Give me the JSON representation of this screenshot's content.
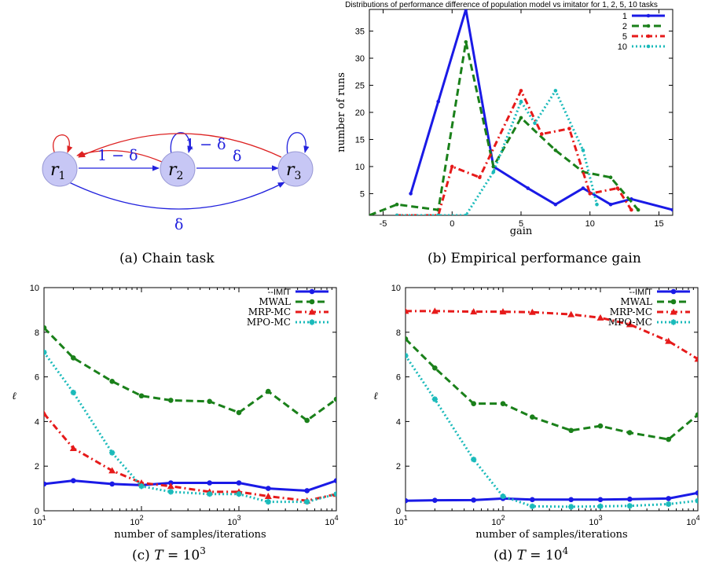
{
  "diagram": {
    "nodes": [
      {
        "id": "r1",
        "label": "r",
        "sub": "1"
      },
      {
        "id": "r2",
        "label": "r",
        "sub": "2"
      },
      {
        "id": "r3",
        "label": "r",
        "sub": "3"
      }
    ],
    "edge_labels": {
      "r2_r1": "1 − δ",
      "r3_r2": "1 − δ",
      "r2_r3": "δ",
      "r1_r3": "δ"
    },
    "colors": {
      "node_fill": "#c7c7f5",
      "node_stroke": "#9a9ad6",
      "red_edge": "#dd2222",
      "blue_edge": "#2222dd"
    }
  },
  "captions": {
    "a": "(a)  Chain task",
    "b": "(b)  Empirical performance gain",
    "c_prefix": "(c)  ",
    "c_var": "T",
    "c_eq": " = 10",
    "c_exp": "3",
    "d_prefix": "(d)  ",
    "d_var": "T",
    "d_eq": " = 10",
    "d_exp": "4"
  },
  "chart_data": [
    {
      "type": "line",
      "title": "Distributions of performance difference of population model vs imitator for 1, 2, 5, 10 tasks",
      "xlabel": "gain",
      "ylabel": "number of runs",
      "xlim": [
        -6,
        16
      ],
      "ylim": [
        1,
        39
      ],
      "xticks": [
        -5,
        0,
        5,
        10,
        15
      ],
      "yticks": [
        5,
        10,
        15,
        20,
        25,
        30,
        35
      ],
      "legend_position": "top-right",
      "series": [
        {
          "name": "1",
          "color": "#1a1ae6",
          "dash": "solid",
          "x": [
            -3,
            -1,
            1,
            3,
            5.5,
            7.5,
            9.5,
            11.5,
            13,
            16
          ],
          "y": [
            5,
            22,
            39,
            10,
            6,
            3,
            6,
            3,
            4,
            2
          ]
        },
        {
          "name": "2",
          "color": "#1a801a",
          "dash": "dash",
          "x": [
            -6,
            -4,
            -1,
            1,
            3,
            5,
            7.5,
            9.5,
            11.5,
            13.5
          ],
          "y": [
            1,
            3,
            2,
            33,
            10,
            19,
            13,
            9,
            8,
            2
          ]
        },
        {
          "name": "5",
          "color": "#e61a1a",
          "dash": "dashdot",
          "x": [
            -4,
            -1,
            0,
            2,
            5,
            6.5,
            8.5,
            10,
            12,
            13
          ],
          "y": [
            1,
            1,
            10,
            8,
            24,
            16,
            17,
            5,
            6,
            2
          ]
        },
        {
          "name": "10",
          "color": "#1ababa",
          "dash": "dot",
          "x": [
            -4,
            -1,
            1,
            3,
            5,
            6,
            7.5,
            9.5,
            10.5
          ],
          "y": [
            1,
            1,
            1,
            9,
            22,
            18,
            24,
            13,
            3
          ]
        }
      ]
    },
    {
      "type": "line",
      "xlabel": "number of samples/iterations",
      "ylabel": "ℓ",
      "xscale": "log",
      "xlim": [
        10,
        10000
      ],
      "ylim": [
        0,
        10
      ],
      "xticks": [
        "10",
        "10",
        "10",
        "10"
      ],
      "xtick_exponents": [
        "1",
        "2",
        "3",
        "4"
      ],
      "yticks": [
        0,
        2,
        4,
        6,
        8,
        10
      ],
      "legend_position": "top-right",
      "series": [
        {
          "name": "--IMIT",
          "color": "#1a1ae6",
          "dash": "solid",
          "marker": "circle",
          "x": [
            10,
            20,
            50,
            100,
            200,
            500,
            1000,
            2000,
            5000,
            10000
          ],
          "y": [
            1.2,
            1.35,
            1.2,
            1.15,
            1.25,
            1.25,
            1.25,
            1.0,
            0.9,
            1.35
          ]
        },
        {
          "name": "MWAL",
          "color": "#1a801a",
          "dash": "dash",
          "marker": "circle",
          "x": [
            10,
            20,
            50,
            100,
            200,
            500,
            1000,
            2000,
            5000,
            10000
          ],
          "y": [
            8.2,
            6.85,
            5.8,
            5.15,
            4.95,
            4.9,
            4.4,
            5.35,
            4.05,
            5.0
          ]
        },
        {
          "name": "MRP-MC",
          "color": "#e61a1a",
          "dash": "dashdot",
          "marker": "triangle",
          "x": [
            10,
            20,
            50,
            100,
            200,
            500,
            1000,
            2000,
            5000,
            10000
          ],
          "y": [
            4.35,
            2.8,
            1.8,
            1.25,
            1.1,
            0.85,
            0.85,
            0.65,
            0.45,
            0.75
          ]
        },
        {
          "name": "MPO-MC",
          "color": "#1ababa",
          "dash": "dot",
          "marker": "star",
          "x": [
            10,
            20,
            50,
            100,
            200,
            500,
            1000,
            2000,
            5000,
            10000
          ],
          "y": [
            7.1,
            5.3,
            2.6,
            1.1,
            0.85,
            0.75,
            0.75,
            0.4,
            0.4,
            0.75
          ]
        }
      ]
    },
    {
      "type": "line",
      "xlabel": "number of samples/iterations",
      "ylabel": "ℓ",
      "xscale": "log",
      "xlim": [
        10,
        10000
      ],
      "ylim": [
        0,
        10
      ],
      "xticks": [
        "10",
        "10",
        "10",
        "10"
      ],
      "xtick_exponents": [
        "1",
        "2",
        "3",
        "4"
      ],
      "yticks": [
        0,
        2,
        4,
        6,
        8,
        10
      ],
      "legend_position": "top-right",
      "series": [
        {
          "name": "--IMIT",
          "color": "#1a1ae6",
          "dash": "solid",
          "marker": "circle",
          "x": [
            10,
            20,
            50,
            100,
            200,
            500,
            1000,
            2000,
            5000,
            10000
          ],
          "y": [
            0.45,
            0.47,
            0.48,
            0.55,
            0.5,
            0.5,
            0.5,
            0.52,
            0.55,
            0.8
          ]
        },
        {
          "name": "MWAL",
          "color": "#1a801a",
          "dash": "dash",
          "marker": "circle",
          "x": [
            10,
            20,
            50,
            100,
            200,
            500,
            1000,
            2000,
            5000,
            10000
          ],
          "y": [
            7.7,
            6.4,
            4.8,
            4.8,
            4.2,
            3.6,
            3.8,
            3.5,
            3.2,
            4.3
          ]
        },
        {
          "name": "MRP-MC",
          "color": "#e61a1a",
          "dash": "dashdot",
          "marker": "triangle",
          "x": [
            10,
            20,
            50,
            100,
            200,
            500,
            1000,
            2000,
            5000,
            10000
          ],
          "y": [
            8.95,
            8.95,
            8.92,
            8.92,
            8.9,
            8.8,
            8.65,
            8.35,
            7.6,
            6.8
          ]
        },
        {
          "name": "MPO-MC",
          "color": "#1ababa",
          "dash": "dot",
          "marker": "star",
          "x": [
            10,
            20,
            50,
            100,
            200,
            500,
            1000,
            2000,
            5000,
            10000
          ],
          "y": [
            6.95,
            5.0,
            2.3,
            0.65,
            0.2,
            0.18,
            0.2,
            0.22,
            0.3,
            0.45
          ]
        }
      ]
    }
  ]
}
